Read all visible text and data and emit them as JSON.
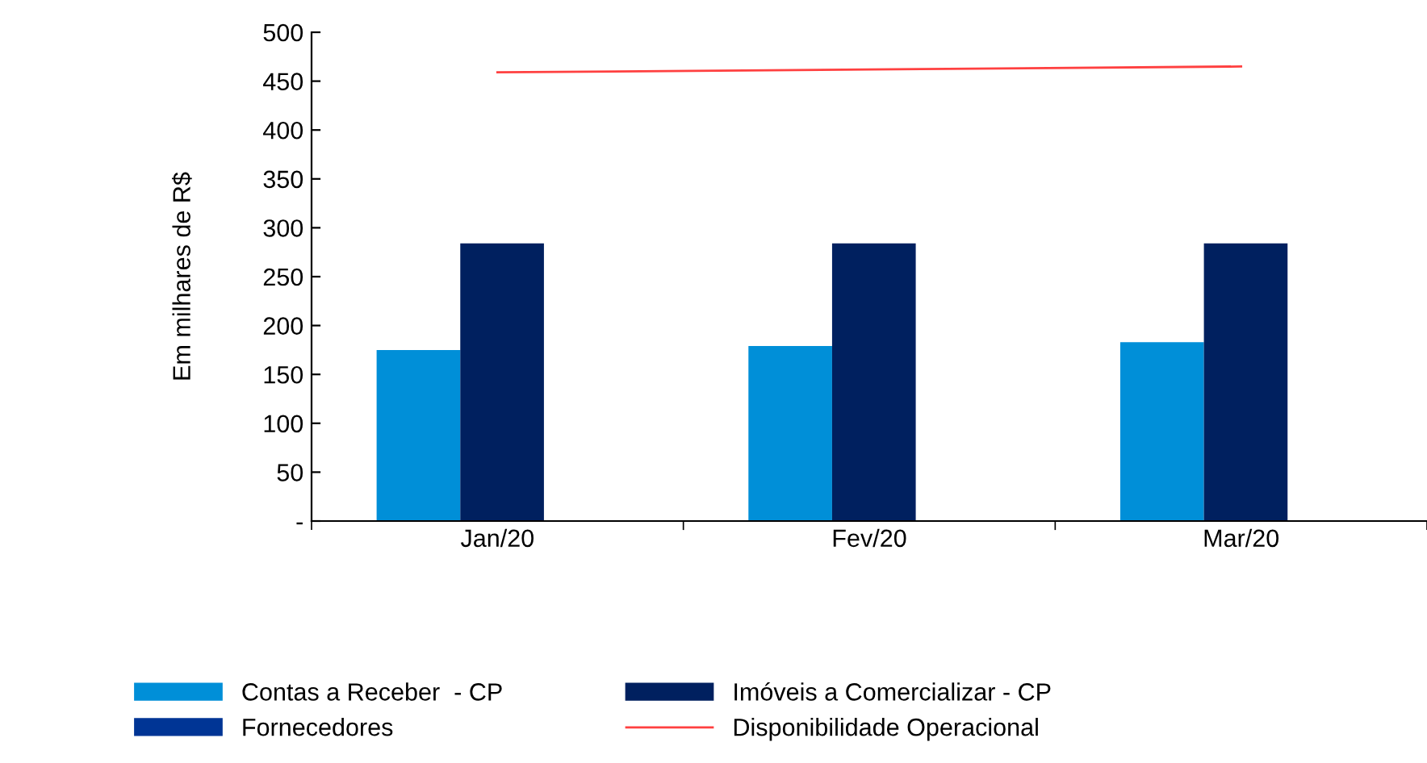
{
  "chart_data": {
    "type": "bar",
    "ylabel": "Em milhares de R$",
    "categories": [
      "Jan/20",
      "Fev/20",
      "Mar/20"
    ],
    "series": [
      {
        "name": "Contas a Receber  - CP",
        "color": "#008fd8",
        "values": [
          175,
          179,
          183
        ]
      },
      {
        "name": "Imóveis a Comercializar - CP",
        "color": "#00205f",
        "values": [
          284,
          284,
          284
        ]
      },
      {
        "name": "Fornecedores",
        "color": "#003595",
        "values": [
          null,
          null,
          null
        ]
      },
      {
        "name": "Disponibilidade Operacional",
        "color": "#ff4040",
        "type": "line",
        "values": [
          459,
          462,
          465
        ]
      }
    ],
    "ylim": [
      0,
      500
    ],
    "yticks": [
      {
        "value": 0,
        "label": "-"
      },
      50,
      100,
      150,
      200,
      250,
      300,
      350,
      400,
      450,
      500
    ],
    "grid": false,
    "legend": "bottom"
  }
}
